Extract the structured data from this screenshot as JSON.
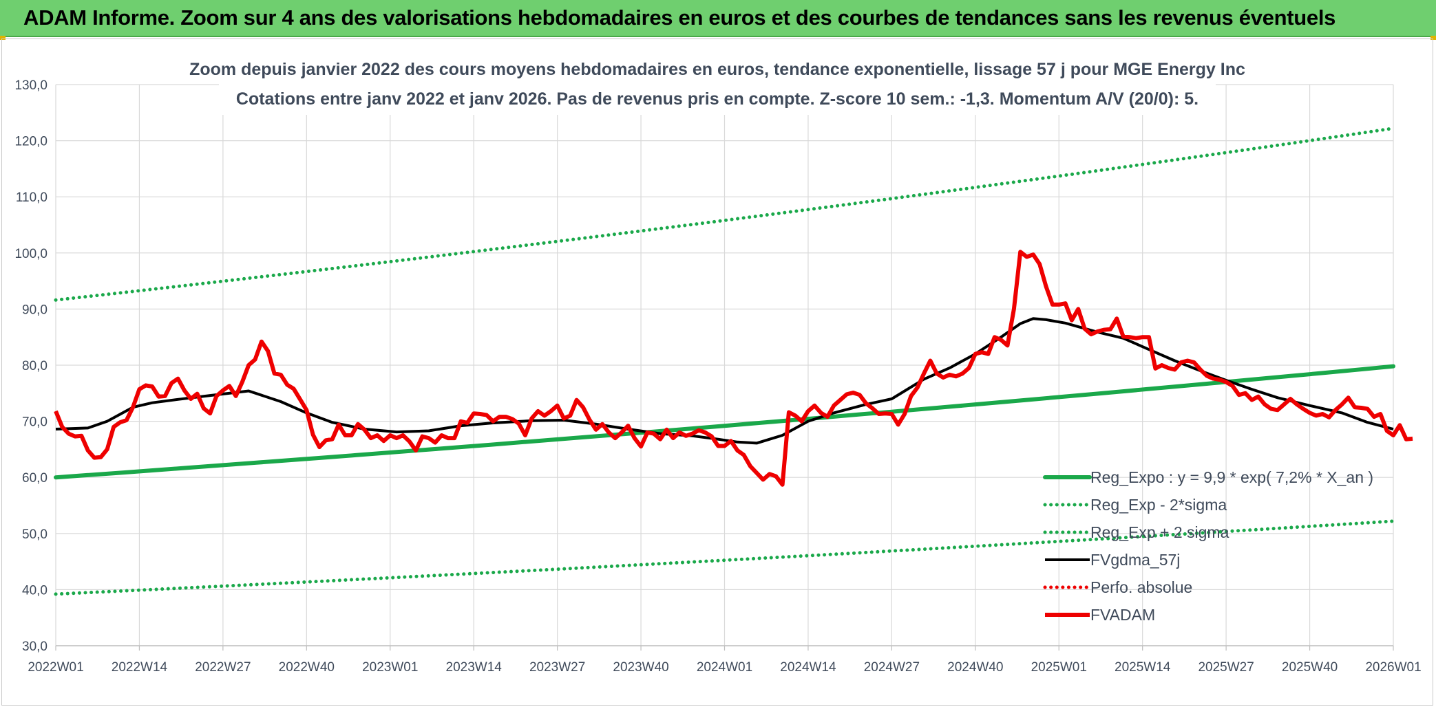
{
  "banner": {
    "title": "ADAM Informe. Zoom sur 4 ans des valorisations hebdomadaires en euros et des courbes de tendances sans les revenus éventuels"
  },
  "colors": {
    "banner_bg": "#6fcf6f",
    "trend_green": "#1aa84a",
    "price_red": "#ee0000",
    "smooth_black": "#000000",
    "grid": "#d9d9d9",
    "text": "#3f4a5a"
  },
  "chart_data": {
    "type": "line",
    "title_line1": "Zoom depuis janvier 2022 des cours moyens hebdomadaires en euros, tendance exponentielle, lissage 57 j pour MGE Energy Inc",
    "title_line2": "Cotations entre janv 2022 et janv 2026. Pas de revenus pris en compte. Z-score 10 sem.: -1,3. Momentum A/V (20/0): 5.",
    "grid": true,
    "legend_position": "bottom-right",
    "ylim": [
      30,
      130
    ],
    "y_ticks": [
      "30,0",
      "40,0",
      "50,0",
      "60,0",
      "70,0",
      "80,0",
      "90,0",
      "100,0",
      "110,0",
      "120,0",
      "130,0"
    ],
    "x_ticks": [
      "2022W01",
      "2022W14",
      "2022W27",
      "2022W40",
      "2023W01",
      "2023W14",
      "2023W27",
      "2023W40",
      "2024W01",
      "2024W14",
      "2024W27",
      "2024W40",
      "2025W01",
      "2025W14",
      "2025W27",
      "2025W40",
      "2026W01"
    ],
    "x_tick_weeks": [
      0,
      13,
      26,
      39,
      52,
      65,
      78,
      91,
      104,
      117,
      130,
      143,
      156,
      169,
      182,
      195,
      208
    ],
    "series": [
      {
        "name": "Reg_Expo : y = 9,9 * exp( 7,2% *  X_an )",
        "style": "solid",
        "color": "#1aa84a",
        "start": [
          0,
          60.0
        ],
        "end": [
          208,
          79.8
        ]
      },
      {
        "name": "Reg_Exp - 2*sigma",
        "style": "dotted",
        "color": "#1aa84a",
        "start": [
          0,
          39.2
        ],
        "end": [
          208,
          52.2
        ]
      },
      {
        "name": "Reg_Exp + 2 sigma",
        "style": "dotted",
        "color": "#1aa84a",
        "start": [
          0,
          91.6
        ],
        "end": [
          208,
          122.2
        ]
      },
      {
        "name": "FVgdma_57j",
        "style": "solid",
        "color": "#000000",
        "points": [
          [
            0,
            68.6
          ],
          [
            5,
            68.8
          ],
          [
            8,
            70.0
          ],
          [
            12,
            72.5
          ],
          [
            15,
            73.3
          ],
          [
            19,
            73.9
          ],
          [
            24,
            74.6
          ],
          [
            30,
            75.4
          ],
          [
            35,
            73.5
          ],
          [
            39,
            71.5
          ],
          [
            43,
            69.8
          ],
          [
            48,
            68.6
          ],
          [
            53,
            68.1
          ],
          [
            58,
            68.3
          ],
          [
            63,
            69.2
          ],
          [
            68,
            69.7
          ],
          [
            74,
            70.1
          ],
          [
            79,
            70.2
          ],
          [
            84,
            69.5
          ],
          [
            89,
            68.6
          ],
          [
            94,
            67.8
          ],
          [
            99,
            67.4
          ],
          [
            103,
            66.8
          ],
          [
            106,
            66.3
          ],
          [
            109,
            66.1
          ],
          [
            113,
            67.5
          ],
          [
            117,
            70.0
          ],
          [
            121,
            71.5
          ],
          [
            126,
            73.0
          ],
          [
            130,
            74.0
          ],
          [
            135,
            77.5
          ],
          [
            139,
            79.5
          ],
          [
            143,
            82.0
          ],
          [
            147,
            85.0
          ],
          [
            150,
            87.4
          ],
          [
            152,
            88.3
          ],
          [
            154,
            88.1
          ],
          [
            157,
            87.5
          ],
          [
            162,
            85.9
          ],
          [
            166,
            84.8
          ],
          [
            170,
            82.8
          ],
          [
            174,
            80.8
          ],
          [
            178,
            79.0
          ],
          [
            182,
            77.3
          ],
          [
            186,
            75.7
          ],
          [
            190,
            74.2
          ],
          [
            195,
            72.8
          ],
          [
            200,
            71.5
          ],
          [
            204,
            69.8
          ],
          [
            208,
            68.6
          ]
        ]
      },
      {
        "name": "Perfo. absolue",
        "style": "dotted",
        "color": "#ee0000",
        "points": []
      },
      {
        "name": "FVADAM",
        "style": "solid",
        "color": "#ee0000",
        "points": [
          [
            0,
            71.8
          ],
          [
            1,
            69.0
          ],
          [
            2,
            67.8
          ],
          [
            3,
            67.3
          ],
          [
            4,
            67.4
          ],
          [
            5,
            64.8
          ],
          [
            6,
            63.5
          ],
          [
            7,
            63.6
          ],
          [
            8,
            65.0
          ],
          [
            9,
            69.0
          ],
          [
            10,
            69.8
          ],
          [
            11,
            70.2
          ],
          [
            12,
            72.5
          ],
          [
            13,
            75.7
          ],
          [
            14,
            76.4
          ],
          [
            15,
            76.2
          ],
          [
            16,
            74.4
          ],
          [
            17,
            74.5
          ],
          [
            18,
            76.8
          ],
          [
            19,
            77.6
          ],
          [
            20,
            75.5
          ],
          [
            21,
            74.0
          ],
          [
            22,
            74.9
          ],
          [
            23,
            72.3
          ],
          [
            24,
            71.4
          ],
          [
            25,
            74.5
          ],
          [
            26,
            75.5
          ],
          [
            27,
            76.3
          ],
          [
            28,
            74.5
          ],
          [
            29,
            77.0
          ],
          [
            30,
            80.0
          ],
          [
            31,
            81.0
          ],
          [
            32,
            84.2
          ],
          [
            33,
            82.5
          ],
          [
            34,
            78.5
          ],
          [
            35,
            78.3
          ],
          [
            36,
            76.5
          ],
          [
            37,
            75.8
          ],
          [
            38,
            73.9
          ],
          [
            39,
            72.0
          ],
          [
            40,
            67.6
          ],
          [
            41,
            65.4
          ],
          [
            42,
            66.6
          ],
          [
            43,
            66.8
          ],
          [
            44,
            69.4
          ],
          [
            45,
            67.5
          ],
          [
            46,
            67.5
          ],
          [
            47,
            69.5
          ],
          [
            48,
            68.5
          ],
          [
            49,
            67.0
          ],
          [
            50,
            67.5
          ],
          [
            51,
            66.5
          ],
          [
            52,
            67.5
          ],
          [
            53,
            67.0
          ],
          [
            54,
            67.5
          ],
          [
            55,
            66.4
          ],
          [
            56,
            64.8
          ],
          [
            57,
            67.3
          ],
          [
            58,
            67.0
          ],
          [
            59,
            66.2
          ],
          [
            60,
            67.5
          ],
          [
            61,
            67.0
          ],
          [
            62,
            67.0
          ],
          [
            63,
            70.0
          ],
          [
            64,
            69.7
          ],
          [
            65,
            71.4
          ],
          [
            66,
            71.3
          ],
          [
            67,
            71.1
          ],
          [
            68,
            70.0
          ],
          [
            69,
            70.8
          ],
          [
            70,
            70.8
          ],
          [
            71,
            70.4
          ],
          [
            72,
            69.6
          ],
          [
            73,
            67.5
          ],
          [
            74,
            70.5
          ],
          [
            75,
            71.8
          ],
          [
            76,
            71.0
          ],
          [
            77,
            71.8
          ],
          [
            78,
            72.8
          ],
          [
            79,
            70.5
          ],
          [
            80,
            71.0
          ],
          [
            81,
            73.8
          ],
          [
            82,
            72.5
          ],
          [
            83,
            70.3
          ],
          [
            84,
            68.5
          ],
          [
            85,
            69.5
          ],
          [
            86,
            68.0
          ],
          [
            87,
            67.0
          ],
          [
            88,
            68.0
          ],
          [
            89,
            69.2
          ],
          [
            90,
            67.0
          ],
          [
            91,
            65.5
          ],
          [
            92,
            68.0
          ],
          [
            93,
            67.8
          ],
          [
            94,
            66.8
          ],
          [
            95,
            68.5
          ],
          [
            96,
            67.0
          ],
          [
            97,
            68.0
          ],
          [
            98,
            67.4
          ],
          [
            99,
            67.8
          ],
          [
            100,
            68.4
          ],
          [
            101,
            68.0
          ],
          [
            102,
            67.3
          ],
          [
            103,
            65.6
          ],
          [
            104,
            65.6
          ],
          [
            105,
            66.5
          ],
          [
            106,
            64.8
          ],
          [
            107,
            64.0
          ],
          [
            108,
            62.0
          ],
          [
            109,
            60.8
          ],
          [
            110,
            59.6
          ],
          [
            111,
            60.6
          ],
          [
            112,
            60.2
          ],
          [
            113,
            58.7
          ],
          [
            114,
            71.6
          ],
          [
            115,
            71.0
          ],
          [
            116,
            70.0
          ],
          [
            117,
            71.8
          ],
          [
            118,
            72.8
          ],
          [
            119,
            71.5
          ],
          [
            120,
            70.8
          ],
          [
            121,
            72.8
          ],
          [
            122,
            73.8
          ],
          [
            123,
            74.8
          ],
          [
            124,
            75.1
          ],
          [
            125,
            74.7
          ],
          [
            126,
            73.2
          ],
          [
            127,
            72.3
          ],
          [
            128,
            71.3
          ],
          [
            129,
            71.4
          ],
          [
            130,
            71.3
          ],
          [
            131,
            69.4
          ],
          [
            132,
            71.3
          ],
          [
            133,
            74.5
          ],
          [
            134,
            76.0
          ],
          [
            135,
            78.5
          ],
          [
            136,
            80.8
          ],
          [
            137,
            78.5
          ],
          [
            138,
            77.8
          ],
          [
            139,
            78.3
          ],
          [
            140,
            78.0
          ],
          [
            141,
            78.5
          ],
          [
            142,
            79.5
          ],
          [
            143,
            82.0
          ],
          [
            144,
            82.3
          ],
          [
            145,
            82.0
          ],
          [
            146,
            85.0
          ],
          [
            147,
            84.5
          ],
          [
            148,
            83.5
          ],
          [
            149,
            90.0
          ],
          [
            150,
            100.2
          ],
          [
            151,
            99.3
          ],
          [
            152,
            99.7
          ],
          [
            153,
            98.0
          ],
          [
            154,
            94.0
          ],
          [
            155,
            90.8
          ],
          [
            156,
            90.8
          ],
          [
            157,
            91.0
          ],
          [
            158,
            88.0
          ],
          [
            159,
            90.0
          ],
          [
            160,
            86.5
          ],
          [
            161,
            85.5
          ],
          [
            162,
            86.0
          ],
          [
            163,
            86.3
          ],
          [
            164,
            86.4
          ],
          [
            165,
            88.3
          ],
          [
            166,
            85.1
          ],
          [
            167,
            85.0
          ],
          [
            168,
            84.8
          ],
          [
            169,
            85.0
          ],
          [
            170,
            85.0
          ],
          [
            171,
            79.4
          ],
          [
            172,
            80.0
          ],
          [
            173,
            79.5
          ],
          [
            174,
            79.2
          ],
          [
            175,
            80.5
          ],
          [
            176,
            80.8
          ],
          [
            177,
            80.5
          ],
          [
            178,
            79.2
          ],
          [
            179,
            78.1
          ],
          [
            180,
            77.6
          ],
          [
            181,
            77.4
          ],
          [
            182,
            77.0
          ],
          [
            183,
            76.3
          ],
          [
            184,
            74.7
          ],
          [
            185,
            75.0
          ],
          [
            186,
            73.8
          ],
          [
            187,
            74.4
          ],
          [
            188,
            73.0
          ],
          [
            189,
            72.2
          ],
          [
            190,
            72.0
          ],
          [
            191,
            73.0
          ],
          [
            192,
            74.0
          ],
          [
            193,
            73.0
          ],
          [
            194,
            72.2
          ],
          [
            195,
            71.5
          ],
          [
            196,
            71.0
          ],
          [
            197,
            71.3
          ],
          [
            198,
            70.7
          ],
          [
            199,
            72.0
          ],
          [
            200,
            73.0
          ],
          [
            201,
            74.2
          ],
          [
            202,
            72.5
          ],
          [
            203,
            72.4
          ],
          [
            204,
            72.2
          ],
          [
            205,
            70.8
          ],
          [
            206,
            71.3
          ],
          [
            207,
            68.3
          ],
          [
            208,
            67.5
          ],
          [
            209,
            69.3
          ],
          [
            210,
            66.8
          ],
          [
            211,
            66.9
          ]
        ]
      }
    ]
  }
}
